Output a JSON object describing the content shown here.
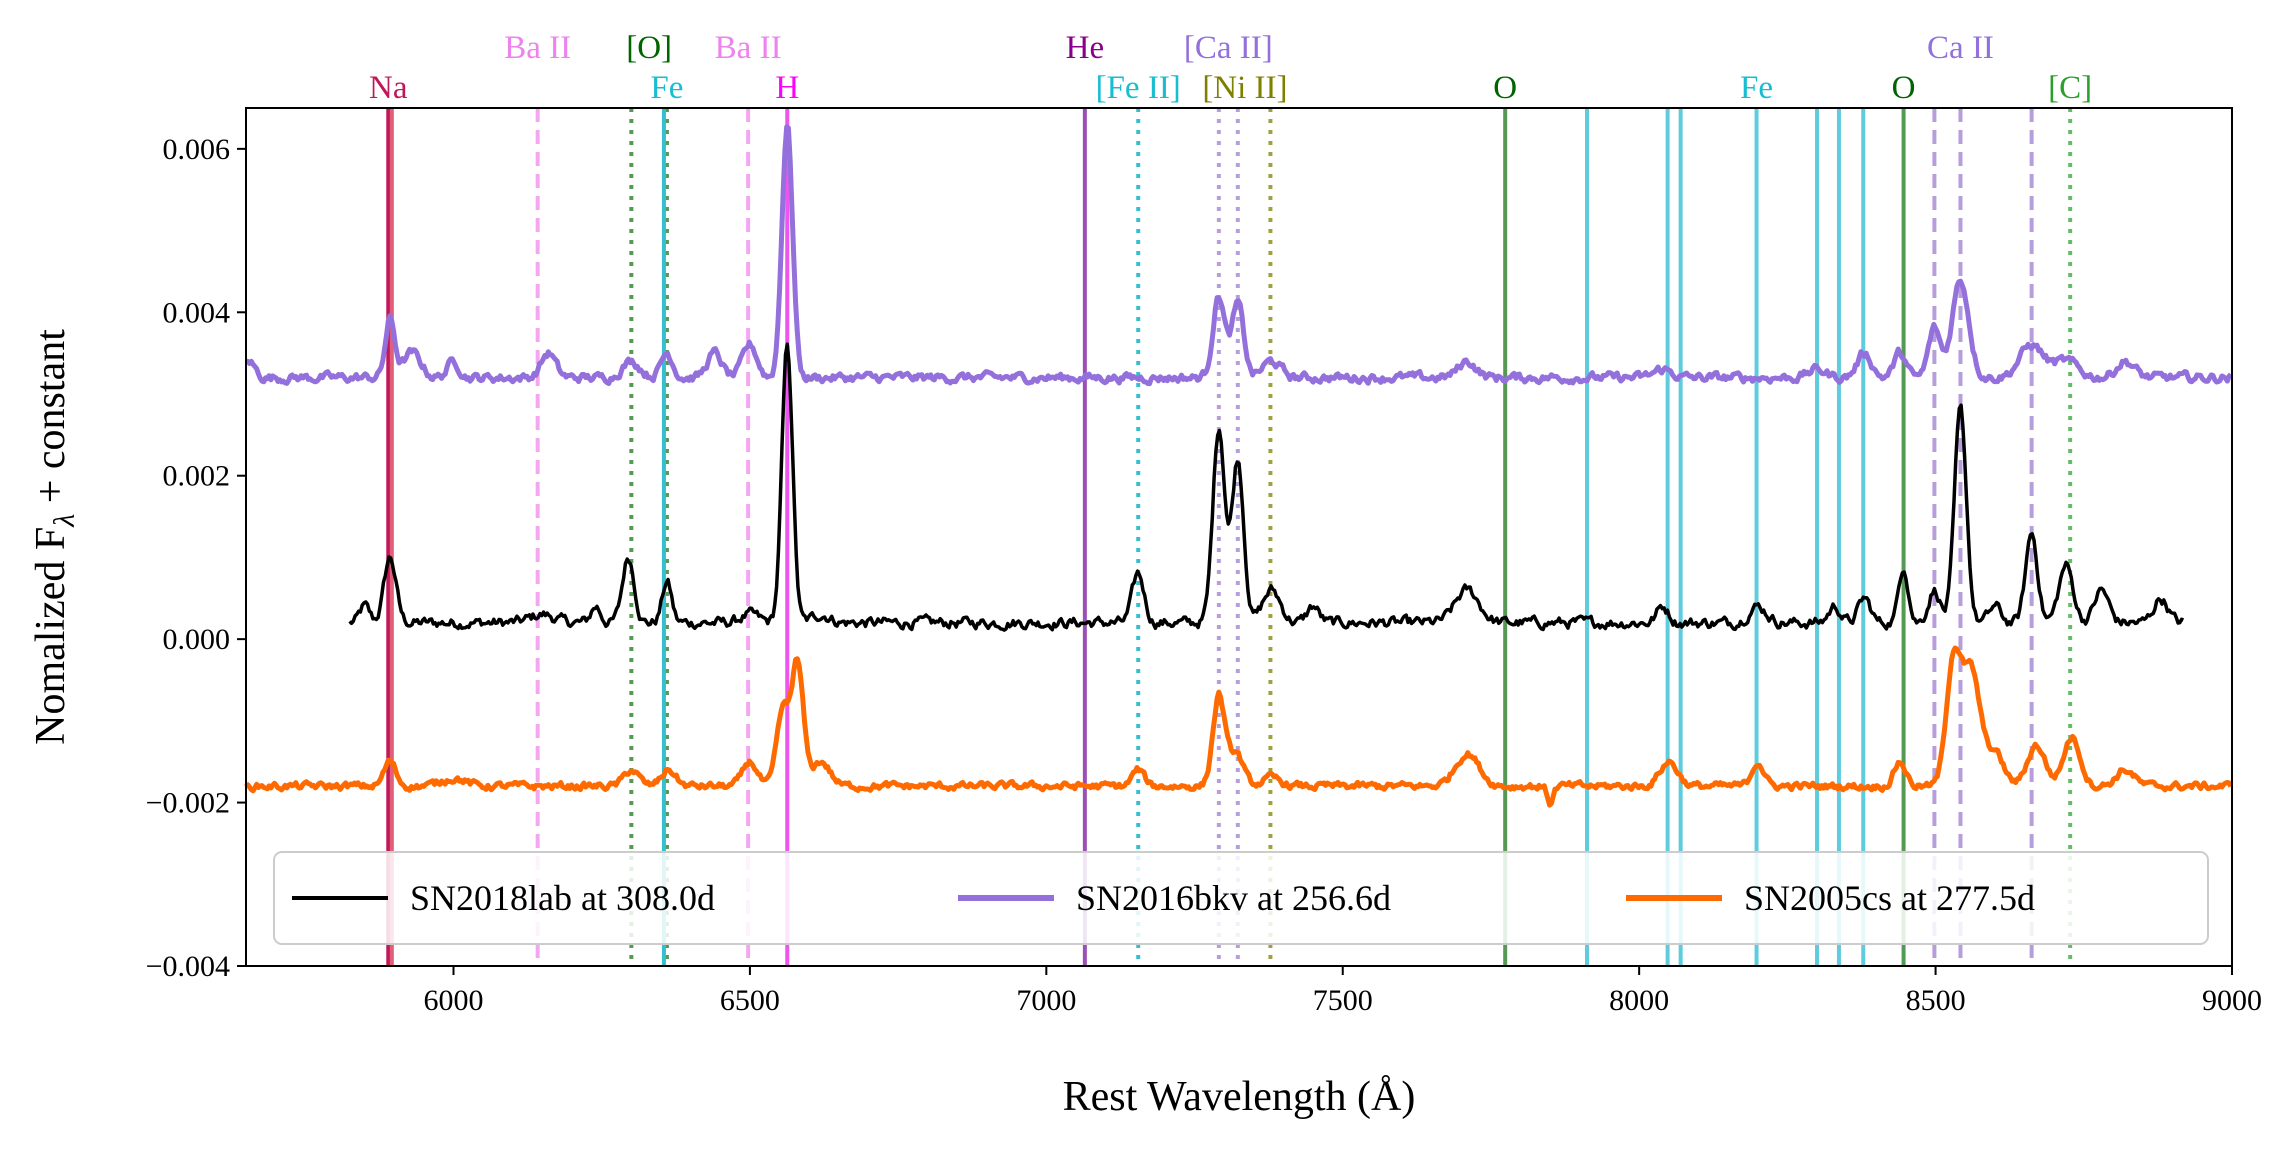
{
  "chart_data": {
    "type": "line",
    "title": "",
    "xlabel": "Rest Wavelength (Å)",
    "ylabel_main": "Nomalized F",
    "ylabel_sub": "λ",
    "ylabel_rest": " + constant",
    "xlim": [
      5650,
      9000
    ],
    "ylim": [
      -0.004,
      0.0065
    ],
    "xticks": [
      6000,
      6500,
      7000,
      7500,
      8000,
      8500,
      9000
    ],
    "xtick_labels": [
      "6000",
      "6500",
      "7000",
      "7500",
      "8000",
      "8500",
      "9000"
    ],
    "yticks": [
      -0.004,
      -0.002,
      0.0,
      0.002,
      0.004,
      0.006
    ],
    "ytick_labels": [
      "−0.004",
      "−0.002",
      "0.000",
      "0.002",
      "0.004",
      "0.006"
    ],
    "legend": {
      "placement": "lower-center",
      "entries": [
        {
          "label": "SN2018lab at 308.0d",
          "color": "#000000"
        },
        {
          "label": "SN2016bkv at 256.6d",
          "color": "#9370DB"
        },
        {
          "label": "SN2005cs at 277.5d",
          "color": "#FF6A00"
        }
      ]
    },
    "series": [
      {
        "name": "SN2018lab at 308.0d",
        "color": "#000000",
        "base": 0.0002,
        "xmin": 5825,
        "xmax": 8920,
        "noise": 6e-05,
        "features": [
          [
            5850,
            0.0002,
            8
          ],
          [
            5893,
            0.0008,
            10
          ],
          [
            6150,
            0.0001,
            20
          ],
          [
            6240,
            0.0002,
            8
          ],
          [
            6295,
            0.0008,
            10
          ],
          [
            6360,
            0.0005,
            8
          ],
          [
            6500,
            0.0001,
            15
          ],
          [
            6563,
            0.0034,
            9
          ],
          [
            6620,
            0.0001,
            15
          ],
          [
            7155,
            0.0006,
            10
          ],
          [
            7291,
            0.0024,
            10
          ],
          [
            7323,
            0.002,
            10
          ],
          [
            7380,
            0.0004,
            15
          ],
          [
            7450,
            0.0002,
            10
          ],
          [
            7710,
            0.0004,
            20
          ],
          [
            8040,
            0.0002,
            10
          ],
          [
            8200,
            0.0002,
            15
          ],
          [
            8330,
            0.0002,
            10
          ],
          [
            8380,
            0.0003,
            10
          ],
          [
            8446,
            0.0007,
            8
          ],
          [
            8498,
            0.0004,
            10
          ],
          [
            8542,
            0.0026,
            10
          ],
          [
            8600,
            0.0002,
            10
          ],
          [
            8662,
            0.0011,
            10
          ],
          [
            8720,
            0.0007,
            12
          ],
          [
            8780,
            0.0004,
            12
          ],
          [
            8880,
            0.0003,
            12
          ]
        ]
      },
      {
        "name": "SN2016bkv at 256.6d",
        "color": "#9370DB",
        "base": 0.0032,
        "xmin": 5650,
        "xmax": 9000,
        "noise": 5e-05,
        "features": [
          [
            5655,
            0.0002,
            10
          ],
          [
            5893,
            0.0007,
            8
          ],
          [
            5930,
            0.0003,
            15
          ],
          [
            6000,
            0.0002,
            10
          ],
          [
            6160,
            0.0003,
            12
          ],
          [
            6300,
            0.0002,
            15
          ],
          [
            6360,
            0.0003,
            10
          ],
          [
            6440,
            0.0003,
            12
          ],
          [
            6500,
            0.0004,
            12
          ],
          [
            6563,
            0.0031,
            9
          ],
          [
            7291,
            0.001,
            10
          ],
          [
            7323,
            0.0009,
            10
          ],
          [
            7380,
            0.0002,
            15
          ],
          [
            7710,
            0.0002,
            15
          ],
          [
            8040,
            0.0001,
            15
          ],
          [
            8300,
            0.0001,
            15
          ],
          [
            8380,
            0.0003,
            12
          ],
          [
            8440,
            0.0003,
            10
          ],
          [
            8498,
            0.0006,
            10
          ],
          [
            8542,
            0.0012,
            14
          ],
          [
            8662,
            0.0004,
            20
          ],
          [
            8720,
            0.0002,
            20
          ],
          [
            8820,
            0.0002,
            15
          ]
        ]
      },
      {
        "name": "SN2005cs at 277.5d",
        "color": "#FF6A00",
        "base": -0.0018,
        "xmin": 5650,
        "xmax": 9000,
        "noise": 4e-05,
        "features": [
          [
            5893,
            0.0003,
            10
          ],
          [
            6000,
            0.0001,
            20
          ],
          [
            6300,
            0.0002,
            12
          ],
          [
            6363,
            0.0002,
            12
          ],
          [
            6500,
            0.0003,
            12
          ],
          [
            6555,
            0.0009,
            10
          ],
          [
            6580,
            0.0015,
            10
          ],
          [
            6620,
            0.0003,
            15
          ],
          [
            7155,
            0.0002,
            10
          ],
          [
            7291,
            0.0011,
            10
          ],
          [
            7320,
            0.0004,
            12
          ],
          [
            7380,
            0.0001,
            15
          ],
          [
            7710,
            0.0004,
            20
          ],
          [
            7850,
            -0.0002,
            5
          ],
          [
            8050,
            0.0003,
            15
          ],
          [
            8200,
            0.0003,
            10
          ],
          [
            8440,
            0.0003,
            10
          ],
          [
            8530,
            0.0015,
            12
          ],
          [
            8560,
            0.0014,
            15
          ],
          [
            8600,
            0.0004,
            15
          ],
          [
            8670,
            0.0005,
            15
          ],
          [
            8730,
            0.0006,
            14
          ],
          [
            8820,
            0.0002,
            15
          ]
        ]
      }
    ],
    "line_markers": [
      {
        "x": 5890,
        "color": "#C2185B",
        "style": "solid",
        "label": "Na",
        "label_row": 2,
        "label_x": 5890
      },
      {
        "x": 5896,
        "color": "#E0607A",
        "style": "solid",
        "label": "",
        "label_row": 2,
        "label_x": 5896
      },
      {
        "x": 6142,
        "color": "#F4A6F0",
        "style": "dashed",
        "label": "Ba II",
        "label_row": 1,
        "label_x": 6142
      },
      {
        "x": 6300,
        "color": "#559955",
        "style": "dotted",
        "label": "[O]",
        "label_row": 1,
        "label_x": 6330
      },
      {
        "x": 6360,
        "color": "#559955",
        "style": "dotted",
        "label": "",
        "label_row": 1,
        "label_x": 6360
      },
      {
        "x": 6355,
        "color": "#36BFCF",
        "style": "solid",
        "label": "Fe",
        "label_row": 2,
        "label_x": 6360
      },
      {
        "x": 6497,
        "color": "#F4A6F0",
        "style": "dashed",
        "label": "Ba II",
        "label_row": 1,
        "label_x": 6497
      },
      {
        "x": 6563,
        "color": "#EE55EE",
        "style": "solid",
        "label": "H",
        "label_row": 2,
        "label_x": 6563
      },
      {
        "x": 7065,
        "color": "#9C4FB5",
        "style": "solid",
        "label": "He",
        "label_row": 1,
        "label_x": 7065
      },
      {
        "x": 7155,
        "color": "#36BFCF",
        "style": "dotted",
        "label": "[Fe II]",
        "label_row": 2,
        "label_x": 7155
      },
      {
        "x": 7291,
        "color": "#B79DDB",
        "style": "dotted",
        "label": "[Ca II]",
        "label_row": 1,
        "label_x": 7307
      },
      {
        "x": 7323,
        "color": "#B79DDB",
        "style": "dotted",
        "label": "",
        "label_row": 1,
        "label_x": 7323
      },
      {
        "x": 7378,
        "color": "#A0A040",
        "style": "dotted",
        "label": "[Ni II]",
        "label_row": 2,
        "label_x": 7335
      },
      {
        "x": 7774,
        "color": "#559955",
        "style": "solid",
        "label": "O",
        "label_row": 2,
        "label_x": 7774
      },
      {
        "x": 7912,
        "color": "#5ECCDC",
        "style": "solid",
        "label": "",
        "label_row": 2,
        "label_x": 7912
      },
      {
        "x": 8048,
        "color": "#5ECCDC",
        "style": "solid",
        "label": "",
        "label_row": 2,
        "label_x": 8048
      },
      {
        "x": 8070,
        "color": "#5ECCDC",
        "style": "solid",
        "label": "",
        "label_row": 2,
        "label_x": 8070
      },
      {
        "x": 8198,
        "color": "#5ECCDC",
        "style": "solid",
        "label": "Fe",
        "label_row": 2,
        "label_x": 8198
      },
      {
        "x": 8300,
        "color": "#5ECCDC",
        "style": "solid",
        "label": "",
        "label_row": 2,
        "label_x": 8300
      },
      {
        "x": 8337,
        "color": "#5ECCDC",
        "style": "solid",
        "label": "",
        "label_row": 2,
        "label_x": 8337
      },
      {
        "x": 8378,
        "color": "#5ECCDC",
        "style": "solid",
        "label": "",
        "label_row": 2,
        "label_x": 8378
      },
      {
        "x": 8446,
        "color": "#559955",
        "style": "solid",
        "label": "O",
        "label_row": 2,
        "label_x": 8446
      },
      {
        "x": 8498,
        "color": "#B79DDB",
        "style": "dashed",
        "label": "",
        "label_row": 1,
        "label_x": 8498
      },
      {
        "x": 8542,
        "color": "#B79DDB",
        "style": "dashed",
        "label": "Ca II",
        "label_row": 1,
        "label_x": 8542
      },
      {
        "x": 8662,
        "color": "#B79DDB",
        "style": "dashed",
        "label": "",
        "label_row": 1,
        "label_x": 8662
      },
      {
        "x": 8727,
        "color": "#66BB66",
        "style": "dotted",
        "label": "[C]",
        "label_row": 2,
        "label_x": 8727
      }
    ],
    "label_colors": {
      "Na": "#C2185B",
      "Ba II": "#EE82EE",
      "[O]": "#006400",
      "Fe": "#17BECF",
      "H": "#FF00FF",
      "He": "#8B008B",
      "[Fe II]": "#17BECF",
      "[Ca II]": "#9370DB",
      "[Ni II]": "#808000",
      "O": "#006400",
      "Ca II": "#9370DB",
      "[C]": "#2CA02C"
    }
  }
}
